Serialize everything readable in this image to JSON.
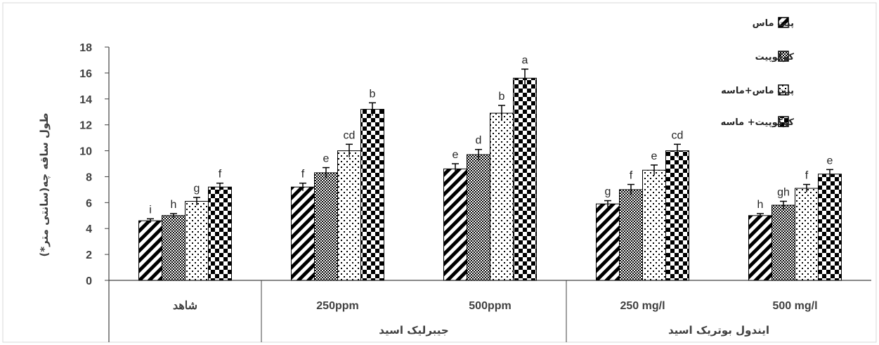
{
  "chart_data": {
    "type": "bar",
    "ylabel": "طول ساقه چه(سانتی متر*)",
    "ylim": [
      0,
      18
    ],
    "yticks": [
      0,
      2,
      4,
      6,
      8,
      10,
      12,
      14,
      16,
      18
    ],
    "grid": false,
    "legend_position": "top-right",
    "categories": [
      "شاهد",
      "250ppm",
      "500ppm",
      "250 mg/l",
      "500 mg/l"
    ],
    "groups": [
      {
        "label": "جیبرلیک اسید",
        "categories": [
          "250ppm",
          "500ppm"
        ]
      },
      {
        "label": "ایندول بوتریک اسید",
        "categories": [
          "250 mg/l",
          "500 mg/l"
        ]
      }
    ],
    "series": [
      {
        "name": "پیت ماس",
        "pattern": "diagonal",
        "values": [
          4.6,
          7.2,
          8.6,
          5.9,
          5.0
        ],
        "errors": [
          0.15,
          0.3,
          0.4,
          0.25,
          0.15
        ],
        "letters": [
          "i",
          "f",
          "e",
          "g",
          "h"
        ]
      },
      {
        "name": "کوکوپیت",
        "pattern": "checker-small",
        "values": [
          5.0,
          8.3,
          9.7,
          7.0,
          5.8
        ],
        "errors": [
          0.15,
          0.4,
          0.4,
          0.4,
          0.3
        ],
        "letters": [
          "h",
          "e",
          "d",
          "f",
          "gh"
        ]
      },
      {
        "name": "پیت ماس+ماسه",
        "pattern": "dots",
        "values": [
          6.1,
          10.0,
          12.9,
          8.5,
          7.1
        ],
        "errors": [
          0.3,
          0.5,
          0.6,
          0.4,
          0.3
        ],
        "letters": [
          "g",
          "cd",
          "b",
          "e",
          "f"
        ]
      },
      {
        "name": "کوکوپیت+ ماسه",
        "pattern": "checker-large",
        "values": [
          7.2,
          13.2,
          15.6,
          10.0,
          8.2
        ],
        "errors": [
          0.3,
          0.5,
          0.7,
          0.5,
          0.35
        ],
        "letters": [
          "f",
          "b",
          "a",
          "cd",
          "e"
        ]
      }
    ]
  }
}
